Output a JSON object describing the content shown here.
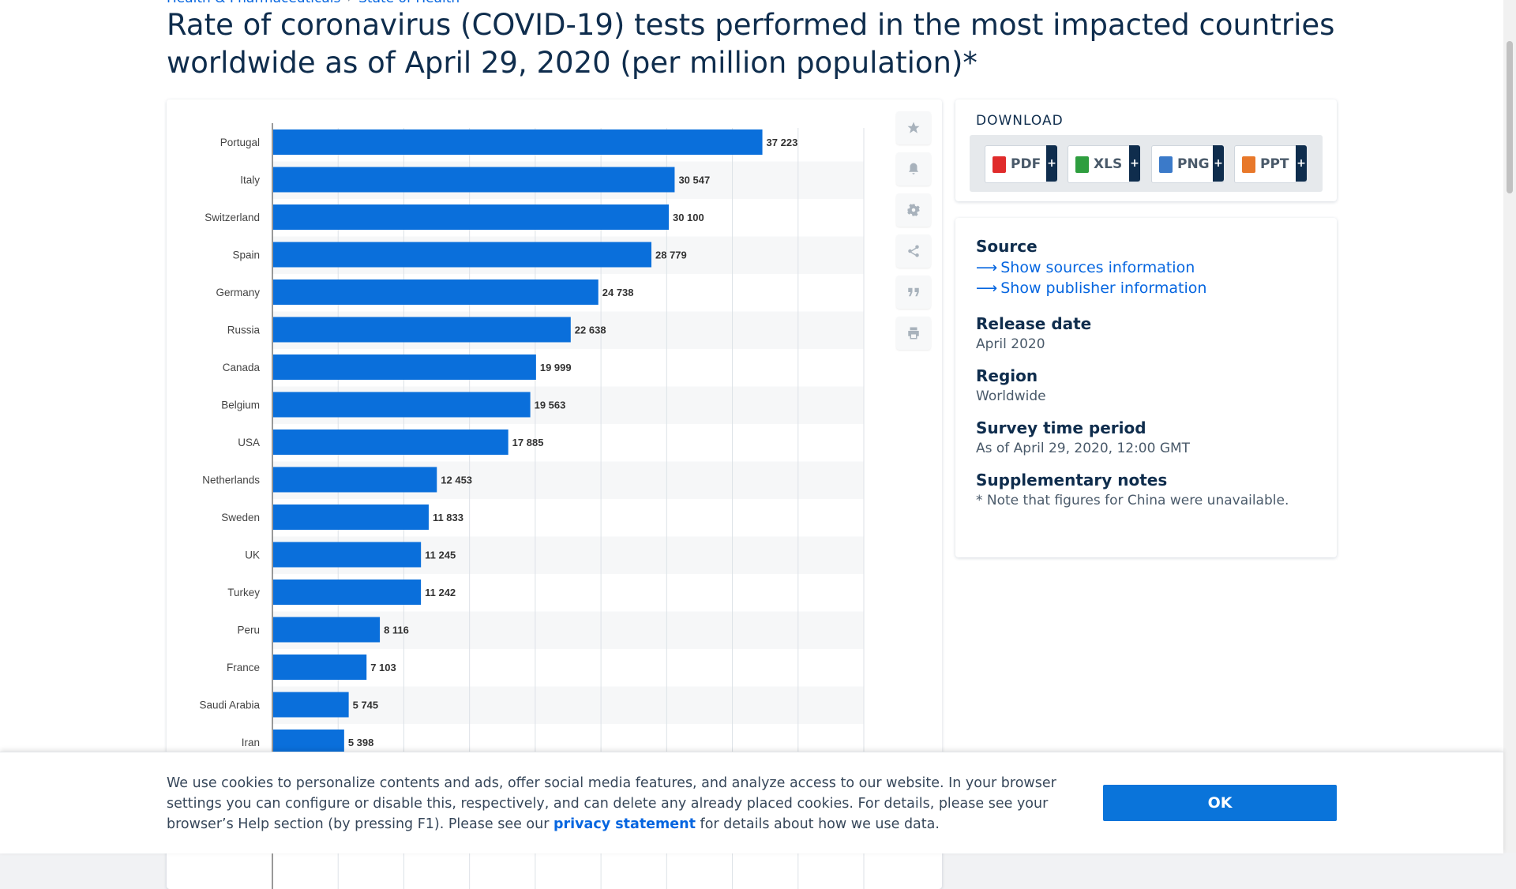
{
  "breadcrumb": {
    "items": [
      "Health & Pharmaceuticals",
      "State of Health"
    ]
  },
  "page_title": "Rate of coronavirus (COVID-19) tests performed in the most impacted countries worldwide as of April 29, 2020 (per million population)*",
  "tools": [
    {
      "icon": "star-icon"
    },
    {
      "icon": "bell-icon"
    },
    {
      "icon": "gear-icon"
    },
    {
      "icon": "share-icon"
    },
    {
      "icon": "quote-icon"
    },
    {
      "icon": "print-icon"
    }
  ],
  "download": {
    "title": "DOWNLOAD",
    "buttons": [
      {
        "label": "PDF",
        "color": "#e02b2b"
      },
      {
        "label": "XLS",
        "color": "#2e9e3f"
      },
      {
        "label": "PNG",
        "color": "#3b7ac9"
      },
      {
        "label": "PPT",
        "color": "#e8782a"
      }
    ],
    "plus": "+"
  },
  "info": {
    "source_heading": "Source",
    "show_sources": "Show sources information",
    "show_publisher": "Show publisher information",
    "release_heading": "Release date",
    "release_value": "April 2020",
    "region_heading": "Region",
    "region_value": "Worldwide",
    "survey_heading": "Survey time period",
    "survey_value": "As of April 29, 2020, 12:00 GMT",
    "notes_heading": "Supplementary notes",
    "notes_value": "* Note that figures for China were unavailable."
  },
  "cookie": {
    "text_before": "We use cookies to personalize contents and ads, offer social media features, and analyze access to our website. In your browser settings you can configure or disable this, respectively, and can delete any already placed cookies. For details, please see your browser’s Help section (by pressing F1). Please see our ",
    "link": "privacy statement",
    "text_after": " for details about how we use data.",
    "ok": "OK"
  },
  "colors": {
    "bar": "#0a6fdb",
    "accent": "#0666e0",
    "title": "#0f2d4d"
  },
  "chart_data": {
    "type": "bar",
    "orientation": "horizontal",
    "categories": [
      "Portugal",
      "Italy",
      "Switzerland",
      "Spain",
      "Germany",
      "Russia",
      "Canada",
      "Belgium",
      "USA",
      "Netherlands",
      "Sweden",
      "UK",
      "Turkey",
      "Peru",
      "France",
      "Saudi Arabia",
      "Iran"
    ],
    "values": [
      37223,
      30547,
      30100,
      28779,
      24738,
      22638,
      19999,
      19563,
      17885,
      12453,
      11833,
      11245,
      11242,
      8116,
      7103,
      5745,
      5398
    ],
    "value_labels": [
      "37 223",
      "30 547",
      "30 100",
      "28 779",
      "24 738",
      "22 638",
      "19 999",
      "19 563",
      "17 885",
      "12 453",
      "11 833",
      "11 245",
      "11 242",
      "8 116",
      "7 103",
      "5 745",
      "5 398"
    ],
    "xlim": [
      0,
      45000
    ],
    "grid": true
  }
}
